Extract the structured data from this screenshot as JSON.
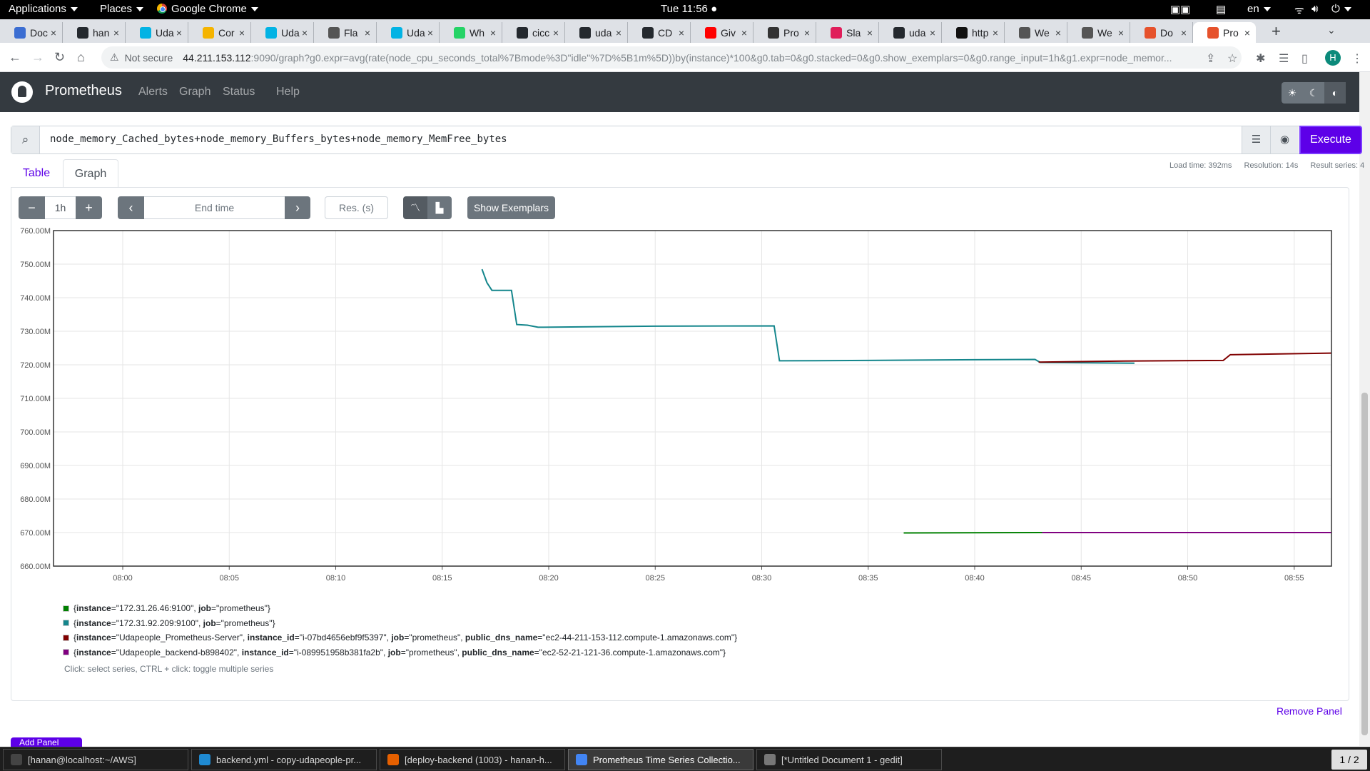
{
  "topbar": {
    "applications": "Applications",
    "places": "Places",
    "app_name": "Google Chrome",
    "clock": "Tue 11:56",
    "lang": "en"
  },
  "tabs": [
    {
      "label": "Doc",
      "favicon": "#3c6ed2"
    },
    {
      "label": "han",
      "favicon": "#24292e"
    },
    {
      "label": "Uda",
      "favicon": "#02b3e4"
    },
    {
      "label": "Cor",
      "favicon": "#f5b400"
    },
    {
      "label": "Uda",
      "favicon": "#02b3e4"
    },
    {
      "label": "Fla",
      "favicon": "#555555"
    },
    {
      "label": "Uda",
      "favicon": "#02b3e4"
    },
    {
      "label": "Wh",
      "favicon": "#25d366"
    },
    {
      "label": "cicc",
      "favicon": "#24292e"
    },
    {
      "label": "uda",
      "favicon": "#24292e"
    },
    {
      "label": "CD",
      "favicon": "#24292e"
    },
    {
      "label": "Giv",
      "favicon": "#ff0000"
    },
    {
      "label": "Pro",
      "favicon": "#333333"
    },
    {
      "label": "Sla",
      "favicon": "#e01e5a"
    },
    {
      "label": "uda",
      "favicon": "#24292e"
    },
    {
      "label": "http",
      "favicon": "#111111"
    },
    {
      "label": "We",
      "favicon": "#555555"
    },
    {
      "label": "We",
      "favicon": "#555555"
    },
    {
      "label": "Do",
      "favicon": "#e6522c"
    },
    {
      "label": "Pro",
      "favicon": "#e6522c"
    }
  ],
  "address": {
    "security": "Not secure",
    "host": "44.211.153.112",
    "path": ":9090/graph?g0.expr=avg(rate(node_cpu_seconds_total%7Bmode%3D\"idle\"%7D%5B1m%5D))by(instance)*100&g0.tab=0&g0.stacked=0&g0.show_exemplars=0&g0.range_input=1h&g1.expr=node_memor..."
  },
  "profile_initial": "H",
  "prom_nav": {
    "brand": "Prometheus",
    "alerts": "Alerts",
    "graph": "Graph",
    "status": "Status",
    "help": "Help"
  },
  "query": {
    "expression": "node_memory_Cached_bytes+node_memory_Buffers_bytes+node_memory_MemFree_bytes",
    "execute_label": "Execute"
  },
  "panel_tabs": {
    "table": "Table",
    "graph": "Graph"
  },
  "stats": {
    "load_time": "Load time: 392ms",
    "resolution": "Resolution: 14s",
    "result_series": "Result series: 4"
  },
  "controls": {
    "range": "1h",
    "end_time_placeholder": "End time",
    "res_placeholder": "Res. (s)",
    "show_exemplars": "Show Exemplars"
  },
  "chart_data": {
    "type": "line",
    "ylim": [
      660,
      760
    ],
    "yticks": [
      "760.00M",
      "750.00M",
      "740.00M",
      "730.00M",
      "720.00M",
      "710.00M",
      "700.00M",
      "690.00M",
      "680.00M",
      "670.00M",
      "660.00M"
    ],
    "xlim": [
      "07:56:45",
      "08:56:45"
    ],
    "xticks": [
      "08:00",
      "08:05",
      "08:10",
      "08:15",
      "08:20",
      "08:25",
      "08:30",
      "08:35",
      "08:40",
      "08:45",
      "08:50",
      "08:55"
    ],
    "grid": true,
    "series": [
      {
        "name": "{instance=\"172.31.92.209:9100\", job=\"prometheus\"}",
        "color": "#14868c",
        "points": [
          [
            "08:16:52",
            748.5
          ],
          [
            "08:17:06",
            744.5
          ],
          [
            "08:17:20",
            742.2
          ],
          [
            "08:18:15",
            742.2
          ],
          [
            "08:18:30",
            732.0
          ],
          [
            "08:19:00",
            731.8
          ],
          [
            "08:19:30",
            731.2
          ],
          [
            "08:25:00",
            731.5
          ],
          [
            "08:30:35",
            731.6
          ],
          [
            "08:30:50",
            721.2
          ],
          [
            "08:35:00",
            721.3
          ],
          [
            "08:40:00",
            721.5
          ],
          [
            "08:42:50",
            721.6
          ],
          [
            "08:43:05",
            720.7
          ],
          [
            "08:47:30",
            720.5
          ]
        ]
      },
      {
        "name": "{instance=\"Udapeople_Prometheus-Server\", instance_id=\"i-07bd4656ebf9f5397\", job=\"prometheus\", public_dns_name=\"ec2-44-211-153-112.compute-1.amazonaws.com\"}",
        "color": "#800000",
        "points": [
          [
            "08:43:00",
            720.8
          ],
          [
            "08:47:00",
            721.1
          ],
          [
            "08:51:40",
            721.3
          ],
          [
            "08:52:00",
            723.0
          ],
          [
            "08:56:45",
            723.5
          ]
        ]
      },
      {
        "name": "{instance=\"172.31.26.46:9100\", job=\"prometheus\"}",
        "color": "#008000",
        "points": [
          [
            "08:36:40",
            669.9
          ],
          [
            "08:43:10",
            670.0
          ]
        ]
      },
      {
        "name": "{instance=\"Udapeople_backend-b898402\", instance_id=\"i-089951958b381fa2b\", job=\"prometheus\", public_dns_name=\"ec2-52-21-121-36.compute-1.amazonaws.com\"}",
        "color": "#800080",
        "points": [
          [
            "08:43:10",
            670.0
          ],
          [
            "08:56:45",
            670.0
          ]
        ]
      }
    ]
  },
  "legend": [
    {
      "color": "#008000",
      "parts": [
        [
          "{",
          false
        ],
        [
          "instance",
          true
        ],
        [
          "=\"172.31.26.46:9100\", ",
          false
        ],
        [
          "job",
          true
        ],
        [
          "=\"prometheus\"}",
          false
        ]
      ]
    },
    {
      "color": "#14868c",
      "parts": [
        [
          "{",
          false
        ],
        [
          "instance",
          true
        ],
        [
          "=\"172.31.92.209:9100\", ",
          false
        ],
        [
          "job",
          true
        ],
        [
          "=\"prometheus\"}",
          false
        ]
      ]
    },
    {
      "color": "#800000",
      "parts": [
        [
          "{",
          false
        ],
        [
          "instance",
          true
        ],
        [
          "=\"Udapeople_Prometheus-Server\", ",
          false
        ],
        [
          "instance_id",
          true
        ],
        [
          "=\"i-07bd4656ebf9f5397\", ",
          false
        ],
        [
          "job",
          true
        ],
        [
          "=\"prometheus\", ",
          false
        ],
        [
          "public_dns_name",
          true
        ],
        [
          "=\"ec2-44-211-153-112.compute-1.amazonaws.com\"}",
          false
        ]
      ]
    },
    {
      "color": "#800080",
      "parts": [
        [
          "{",
          false
        ],
        [
          "instance",
          true
        ],
        [
          "=\"Udapeople_backend-b898402\", ",
          false
        ],
        [
          "instance_id",
          true
        ],
        [
          "=\"i-089951958b381fa2b\", ",
          false
        ],
        [
          "job",
          true
        ],
        [
          "=\"prometheus\", ",
          false
        ],
        [
          "public_dns_name",
          true
        ],
        [
          "=\"ec2-52-21-121-36.compute-1.amazonaws.com\"}",
          false
        ]
      ]
    }
  ],
  "legend_hint": "Click: select series, CTRL + click: toggle multiple series",
  "remove_panel": "Remove Panel",
  "add_panel": "Add Panel",
  "taskbar": {
    "items": [
      {
        "label": "[hanan@localhost:~/AWS]",
        "icon": "#444444"
      },
      {
        "label": "backend.yml - copy-udapeople-pr...",
        "icon": "#1f8ad2"
      },
      {
        "label": "[deploy-backend (1003) - hanan-h...",
        "icon": "#e66000"
      },
      {
        "label": "Prometheus Time Series Collectio...",
        "icon": "#4285f4"
      },
      {
        "label": "[*Untitled Document 1 - gedit]",
        "icon": "#777777"
      }
    ],
    "workspace": "1 / 2"
  }
}
